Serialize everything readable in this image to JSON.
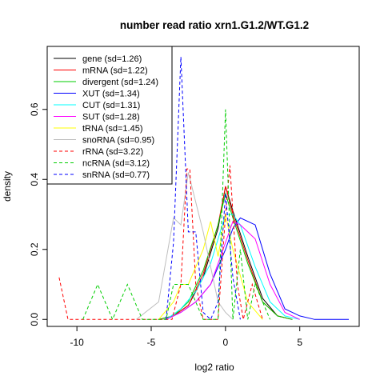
{
  "chart_data": {
    "type": "line",
    "title": "number read ratio xrn1.G1.2/WT.G1.2",
    "xlabel": "log2 ratio",
    "ylabel": "density",
    "xlim": [
      -12,
      9
    ],
    "ylim": [
      -0.02,
      0.78
    ],
    "x_ticks": [
      -10,
      -5,
      0,
      5
    ],
    "y_ticks": [
      0.0,
      0.2,
      0.4,
      0.6
    ],
    "x_tick_labels": [
      "-10",
      "-5",
      "0",
      "5"
    ],
    "y_tick_labels": [
      "0.0",
      "0.2",
      "0.4",
      "0.6"
    ],
    "grid": false,
    "legend_position": "top-left",
    "series": [
      {
        "name": "gene (sd=1.26)",
        "color": "#000000",
        "dash": "solid",
        "x": [
          -4.5,
          -3.5,
          -2.5,
          -1.5,
          -0.5,
          0.0,
          0.5,
          1.5,
          2.5,
          3.5,
          4.5
        ],
        "y": [
          0,
          0.01,
          0.04,
          0.12,
          0.26,
          0.38,
          0.31,
          0.18,
          0.06,
          0.01,
          0
        ]
      },
      {
        "name": "mRNA (sd=1.22)",
        "color": "#ff0000",
        "dash": "solid",
        "x": [
          -4.5,
          -3.5,
          -2.5,
          -1.5,
          -0.5,
          0.0,
          0.5,
          1.5,
          2.5,
          3.5,
          4.5
        ],
        "y": [
          0,
          0.01,
          0.04,
          0.13,
          0.27,
          0.38,
          0.3,
          0.17,
          0.05,
          0.01,
          0
        ]
      },
      {
        "name": "divergent (sd=1.24)",
        "color": "#00cd00",
        "dash": "solid",
        "x": [
          -4.5,
          -3.5,
          -2.5,
          -1.5,
          -0.5,
          0.0,
          0.5,
          1.5,
          2.5,
          3.5,
          4.5
        ],
        "y": [
          0,
          0.01,
          0.05,
          0.14,
          0.27,
          0.36,
          0.29,
          0.16,
          0.05,
          0.01,
          0
        ]
      },
      {
        "name": "XUT (sd=1.34)",
        "color": "#0000ff",
        "dash": "solid",
        "x": [
          -4.0,
          -3.0,
          -2.0,
          -1.0,
          0.0,
          0.5,
          1.0,
          2.0,
          3.0,
          4.0,
          5.0,
          6.0,
          8.3
        ],
        "y": [
          0,
          0.02,
          0.05,
          0.1,
          0.2,
          0.26,
          0.29,
          0.27,
          0.13,
          0.03,
          0.01,
          0.0,
          0.0
        ]
      },
      {
        "name": "CUT (sd=1.31)",
        "color": "#00ffff",
        "dash": "solid",
        "x": [
          -4.0,
          -3.0,
          -2.0,
          -1.0,
          0.0,
          0.5,
          1.0,
          2.0,
          3.0,
          4.0,
          5.0
        ],
        "y": [
          0,
          0.03,
          0.08,
          0.16,
          0.3,
          0.3,
          0.27,
          0.15,
          0.05,
          0.01,
          0
        ]
      },
      {
        "name": "SUT (sd=1.28)",
        "color": "#ff00ff",
        "dash": "solid",
        "x": [
          -4.0,
          -3.0,
          -2.0,
          -1.0,
          0.0,
          0.5,
          1.0,
          2.0,
          3.0,
          4.0,
          5.0
        ],
        "y": [
          0,
          0.02,
          0.05,
          0.1,
          0.22,
          0.28,
          0.27,
          0.23,
          0.1,
          0.02,
          0
        ]
      },
      {
        "name": "tRNA (sd=1.45)",
        "color": "#ffff00",
        "dash": "solid",
        "x": [
          -4.5,
          -3.5,
          -3.0,
          -2.5,
          -1.5,
          -1.0,
          -0.5,
          0.0,
          0.5,
          1.5,
          2.5
        ],
        "y": [
          0,
          0.05,
          0.1,
          0.1,
          0.2,
          0.28,
          0.18,
          0.3,
          0.2,
          0.05,
          0
        ]
      },
      {
        "name": "snoRNA (sd=0.95)",
        "color": "#bebebe",
        "dash": "solid",
        "x": [
          -6.0,
          -4.5,
          -3.5,
          -3.0,
          -2.5,
          -1.5,
          -0.5,
          0.0,
          0.5
        ],
        "y": [
          0,
          0.05,
          0.29,
          0.27,
          0.42,
          0.25,
          0.05,
          0.02,
          0
        ]
      },
      {
        "name": "rRNA (sd=3.22)",
        "color": "#ff0000",
        "dash": "dashed",
        "x": [
          -11.2,
          -10.6,
          -10.0,
          -3.6,
          -3.0,
          -2.6,
          -2.4,
          -2.0,
          -1.5,
          -1.0,
          -0.5,
          0.0,
          0.3,
          0.8,
          1.2,
          1.8,
          2.5
        ],
        "y": [
          0.12,
          0.0,
          0.0,
          0.0,
          0.1,
          0.43,
          0.43,
          0.1,
          0.0,
          0.0,
          0.0,
          0.3,
          0.44,
          0.1,
          0.0,
          0.1,
          0.0
        ]
      },
      {
        "name": "ncRNA (sd=3.12)",
        "color": "#00cd00",
        "dash": "dashed",
        "x": [
          -9.6,
          -8.6,
          -7.6,
          -6.6,
          -5.6,
          -4.0,
          -3.5,
          -2.5,
          -1.5,
          -0.5,
          0.0,
          0.5,
          1.0,
          1.5,
          2.0,
          3.0
        ],
        "y": [
          0,
          0.1,
          0.0,
          0.1,
          0.0,
          0.0,
          0.1,
          0.1,
          0.0,
          0.0,
          0.6,
          0.0,
          0.2,
          0.0,
          0.1,
          0.0
        ]
      },
      {
        "name": "snRNA (sd=0.77)",
        "color": "#0000ff",
        "dash": "dashed",
        "x": [
          -4.0,
          -3.5,
          -3.0,
          -2.5,
          -2.0,
          -1.5,
          -1.0,
          -0.5,
          0.0,
          0.5,
          1.0
        ],
        "y": [
          0,
          0.22,
          0.75,
          0.25,
          0.25,
          0.02,
          0.0,
          0.05,
          0.36,
          0.12,
          0
        ]
      }
    ]
  }
}
